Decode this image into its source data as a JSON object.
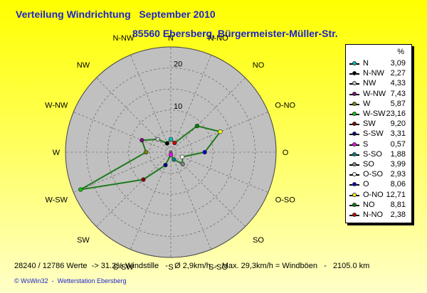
{
  "title": "Verteilung Windrichtung   September 2010",
  "subtitle": "85560 Ebersberg, Bürgermeister-Müller-Str.",
  "legend_unit": "%",
  "footer": "28240 / 12786 Werte  -> 31.2% Windstille   -   Ø 2,9km/h  -  Max. 29,3km/h = Windböen   -   2105.0 km",
  "credits": "© WsWin32  -  Wetterstation Ebersberg",
  "colors": {
    "background": "#ffff00",
    "rose_fill": "#c0c0c0",
    "data_line": "#1f7a1f",
    "title": "#1e24c8"
  },
  "chart_data": {
    "type": "radar",
    "title": "Verteilung Windrichtung   September 2010",
    "subtitle": "85560 Ebersberg, Bürgermeister-Müller-Str.",
    "rmax": 25,
    "ticks": [
      10,
      20
    ],
    "directions": [
      "N",
      "N-NO",
      "NO",
      "O-NO",
      "O",
      "O-SO",
      "SO",
      "S-SO",
      "S",
      "S-SW",
      "SW",
      "W-SW",
      "W",
      "W-NW",
      "NW",
      "N-NW"
    ],
    "series": [
      {
        "labels": [
          "N",
          "N-NO",
          "NO",
          "O-NO",
          "O",
          "O-SO",
          "SO",
          "S-SO",
          "S",
          "S-SW",
          "SW",
          "W-SW",
          "W",
          "W-NW",
          "NW",
          "N-NW"
        ],
        "values": [
          3.09,
          2.38,
          8.81,
          12.71,
          8.06,
          2.93,
          3.99,
          1.88,
          0.57,
          3.31,
          9.2,
          23.16,
          5.87,
          7.43,
          4.33,
          2.27
        ],
        "colors": [
          "#00c0c0",
          "#cc0000",
          "#008000",
          "#ffff00",
          "#0000cc",
          "#ffffff",
          "#808080",
          "#008080",
          "#ff00ff",
          "#000080",
          "#800000",
          "#00cc00",
          "#808000",
          "#800080",
          "#c0c0c0",
          "#000000"
        ]
      }
    ],
    "legend": [
      {
        "label": "N",
        "value": "3,09",
        "color": "#00c0c0"
      },
      {
        "label": "N-NW",
        "value": "2,27",
        "color": "#000000"
      },
      {
        "label": "NW",
        "value": "4,33",
        "color": "#c0c0c0"
      },
      {
        "label": "W-NW",
        "value": "7,43",
        "color": "#800080"
      },
      {
        "label": "W",
        "value": "5,87",
        "color": "#808000"
      },
      {
        "label": "W-SW",
        "value": "23,16",
        "color": "#00cc00"
      },
      {
        "label": "SW",
        "value": "9,20",
        "color": "#800000"
      },
      {
        "label": "S-SW",
        "value": "3,31",
        "color": "#000080"
      },
      {
        "label": "S",
        "value": "0,57",
        "color": "#ff00ff"
      },
      {
        "label": "S-SO",
        "value": "1,88",
        "color": "#008080"
      },
      {
        "label": "SO",
        "value": "3,99",
        "color": "#808080"
      },
      {
        "label": "O-SO",
        "value": "2,93",
        "color": "#ffffff"
      },
      {
        "label": "O",
        "value": "8,06",
        "color": "#0000cc"
      },
      {
        "label": "O-NO",
        "value": "12,71",
        "color": "#ffff00"
      },
      {
        "label": "NO",
        "value": "8,81",
        "color": "#008000"
      },
      {
        "label": "N-NO",
        "value": "2,38",
        "color": "#cc0000"
      }
    ]
  }
}
